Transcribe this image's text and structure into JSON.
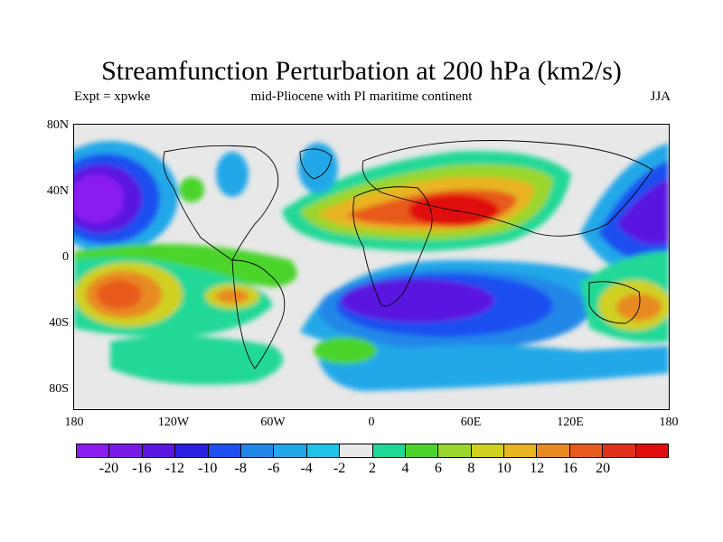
{
  "title": "Streamfunction Perturbation at 200 hPa (km2/s)",
  "subtitle_left": "Expt = xpwke",
  "subtitle_center": "mid-Pliocene with PI maritime continent",
  "subtitle_right": "JJA",
  "lat_labels": [
    "80N",
    "40N",
    "0",
    "40S",
    "80S"
  ],
  "lon_labels": [
    "180",
    "120W",
    "60W",
    "0",
    "60E",
    "120E",
    "180"
  ],
  "colorbar": {
    "colors": [
      "#8a1cf0",
      "#7a1ae6",
      "#5a18e0",
      "#2a20e0",
      "#1e50f0",
      "#2288e8",
      "#22a8e8",
      "#20c4e8",
      "#e8e8e8",
      "#20d896",
      "#4cd42c",
      "#9ad62c",
      "#d0d020",
      "#e8b422",
      "#e88a22",
      "#e85a1c",
      "#e0301a",
      "#e00e0e"
    ],
    "labels": [
      "-20",
      "-16",
      "-12",
      "-10",
      "-8",
      "-6",
      "-4",
      "-2",
      "2",
      "4",
      "6",
      "8",
      "10",
      "12",
      "16",
      "20"
    ]
  }
}
